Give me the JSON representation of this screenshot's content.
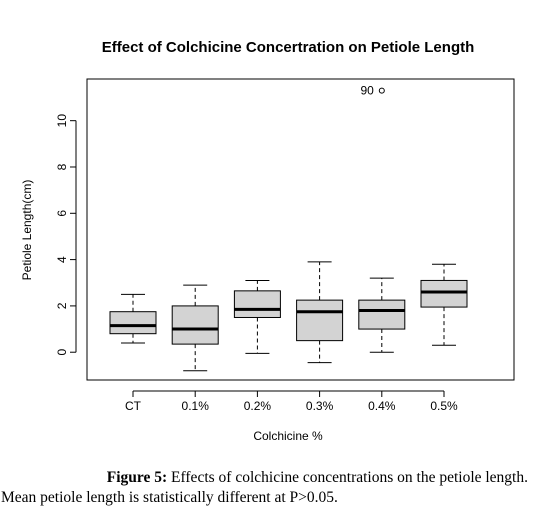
{
  "chart_data": {
    "type": "box",
    "title": "Effect of Colchicine Concertration on Petiole Length",
    "xlabel": "Colchicine %",
    "ylabel": "Petiole Length(cm)",
    "ylim": [
      -1.2,
      11.8
    ],
    "yticks": [
      "0",
      "2",
      "4",
      "6",
      "8",
      "10"
    ],
    "categories": [
      "CT",
      "0.1%",
      "0.2%",
      "0.3%",
      "0.4%",
      "0.5%"
    ],
    "boxes": [
      {
        "whisker_low": 0.4,
        "q1": 0.8,
        "median": 1.15,
        "q3": 1.75,
        "whisker_high": 2.5
      },
      {
        "whisker_low": -0.8,
        "q1": 0.35,
        "median": 1.0,
        "q3": 2.0,
        "whisker_high": 2.9
      },
      {
        "whisker_low": -0.05,
        "q1": 1.5,
        "median": 1.85,
        "q3": 2.65,
        "whisker_high": 3.1
      },
      {
        "whisker_low": -0.45,
        "q1": 0.5,
        "median": 1.75,
        "q3": 2.25,
        "whisker_high": 3.9
      },
      {
        "whisker_low": 0.0,
        "q1": 1.0,
        "median": 1.8,
        "q3": 2.25,
        "whisker_high": 3.2
      },
      {
        "whisker_low": 0.3,
        "q1": 1.95,
        "median": 2.6,
        "q3": 3.1,
        "whisker_high": 3.8
      }
    ],
    "outliers": [
      {
        "category": "0.4%",
        "value": 11.3,
        "label": "90"
      }
    ],
    "box_fill": "#d3d3d3",
    "grid": false
  },
  "caption": {
    "label": "Figure 5:",
    "text_line1": " Effects of colchicine concentrations on the petiole length.",
    "text_line2": "Mean petiole length is statistically different at P>0.05."
  }
}
